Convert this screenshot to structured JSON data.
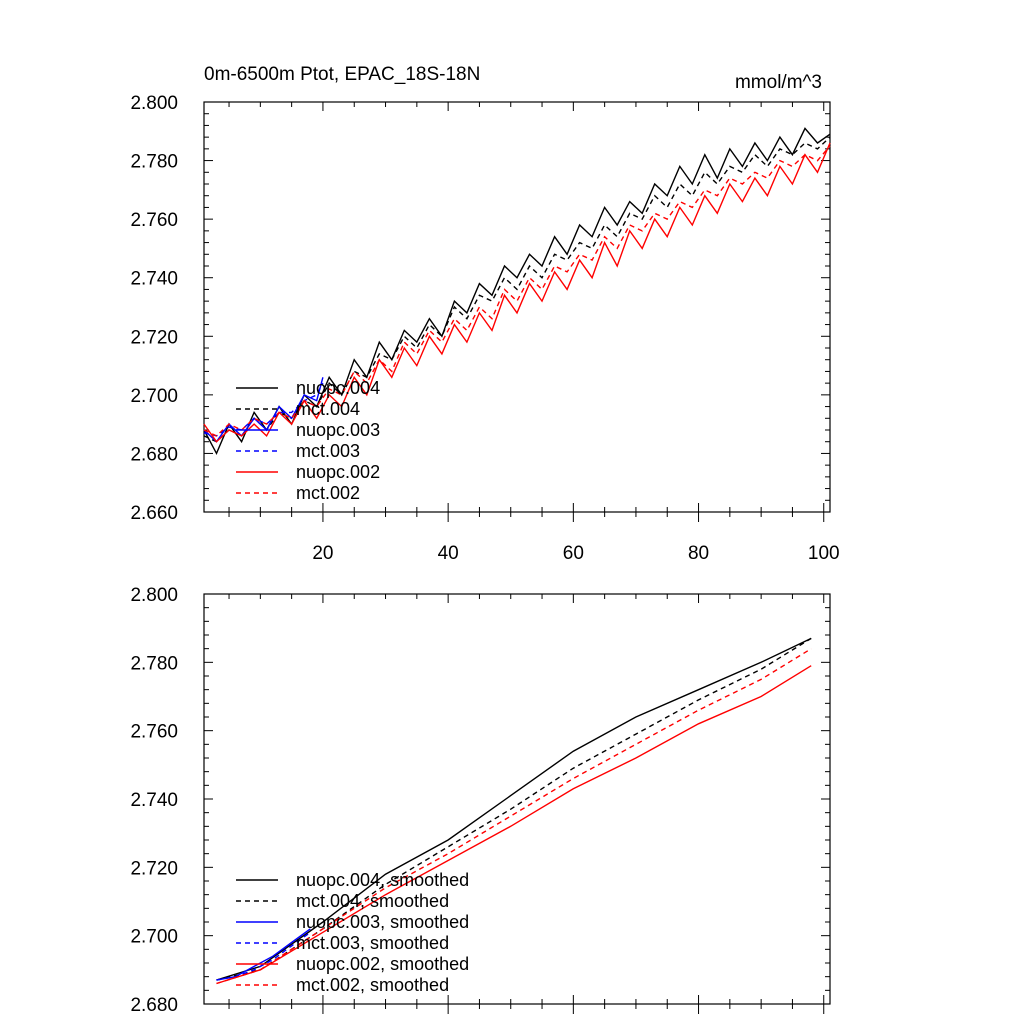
{
  "chart_data": [
    {
      "type": "line",
      "title": "0m-6500m Ptot, EPAC_18S-18N",
      "units": "mmol/m^3",
      "xlim": [
        1,
        101
      ],
      "ylim": [
        2.66,
        2.8
      ],
      "xticks": [
        20,
        40,
        60,
        80,
        100
      ],
      "yticks": [
        2.66,
        2.68,
        2.7,
        2.72,
        2.74,
        2.76,
        2.78,
        2.8
      ],
      "ytick_labels": [
        "2.660",
        "2.680",
        "2.700",
        "2.720",
        "2.740",
        "2.760",
        "2.780",
        "2.800"
      ],
      "xtick_labels": [
        "20",
        "40",
        "60",
        "80",
        "100"
      ],
      "legend_position": "lower-left",
      "series": [
        {
          "name": "nuopc.004",
          "color": "#000000",
          "dash": "solid",
          "x": [
            1,
            3,
            5,
            7,
            9,
            11,
            13,
            15,
            17,
            19,
            21,
            23,
            25,
            27,
            29,
            31,
            33,
            35,
            37,
            39,
            41,
            43,
            45,
            47,
            49,
            51,
            53,
            55,
            57,
            59,
            61,
            63,
            65,
            67,
            69,
            71,
            73,
            75,
            77,
            79,
            81,
            83,
            85,
            87,
            89,
            91,
            93,
            95,
            97,
            99,
            101
          ],
          "y": [
            2.688,
            2.68,
            2.69,
            2.684,
            2.694,
            2.688,
            2.696,
            2.69,
            2.7,
            2.696,
            2.706,
            2.7,
            2.712,
            2.706,
            2.718,
            2.712,
            2.722,
            2.718,
            2.726,
            2.72,
            2.732,
            2.728,
            2.738,
            2.734,
            2.744,
            2.74,
            2.748,
            2.744,
            2.754,
            2.748,
            2.758,
            2.754,
            2.764,
            2.758,
            2.766,
            2.762,
            2.772,
            2.768,
            2.778,
            2.772,
            2.782,
            2.774,
            2.784,
            2.778,
            2.786,
            2.78,
            2.788,
            2.782,
            2.791,
            2.786,
            2.789
          ]
        },
        {
          "name": "mct.004",
          "color": "#000000",
          "dash": "dashed",
          "x": [
            1,
            3,
            5,
            7,
            9,
            11,
            13,
            15,
            17,
            19,
            21,
            23,
            25,
            27,
            29,
            31,
            33,
            35,
            37,
            39,
            41,
            43,
            45,
            47,
            49,
            51,
            53,
            55,
            57,
            59,
            61,
            63,
            65,
            67,
            69,
            71,
            73,
            75,
            77,
            79,
            81,
            83,
            85,
            87,
            89,
            91,
            93,
            95,
            97,
            99,
            101
          ],
          "y": [
            2.686,
            2.684,
            2.688,
            2.686,
            2.692,
            2.688,
            2.694,
            2.692,
            2.698,
            2.696,
            2.704,
            2.7,
            2.708,
            2.706,
            2.714,
            2.712,
            2.72,
            2.716,
            2.724,
            2.72,
            2.73,
            2.726,
            2.734,
            2.732,
            2.74,
            2.736,
            2.744,
            2.74,
            2.748,
            2.746,
            2.752,
            2.75,
            2.758,
            2.754,
            2.762,
            2.76,
            2.768,
            2.764,
            2.772,
            2.768,
            2.776,
            2.772,
            2.778,
            2.776,
            2.782,
            2.778,
            2.784,
            2.782,
            2.786,
            2.784,
            2.788
          ]
        },
        {
          "name": "nuopc.003",
          "color": "#0000ff",
          "dash": "solid",
          "x": [
            1,
            3,
            5,
            7,
            9,
            11,
            13,
            15,
            17,
            19,
            20
          ],
          "y": [
            2.688,
            2.684,
            2.69,
            2.686,
            2.692,
            2.688,
            2.696,
            2.692,
            2.7,
            2.698,
            2.706
          ]
        },
        {
          "name": "mct.003",
          "color": "#0000ff",
          "dash": "dashed",
          "x": [
            1,
            3,
            5,
            7,
            9,
            11,
            13,
            15,
            17,
            19,
            20
          ],
          "y": [
            2.687,
            2.686,
            2.689,
            2.688,
            2.692,
            2.69,
            2.694,
            2.694,
            2.698,
            2.7,
            2.704
          ]
        },
        {
          "name": "nuopc.002",
          "color": "#ff0000",
          "dash": "solid",
          "x": [
            1,
            3,
            5,
            7,
            9,
            11,
            13,
            15,
            17,
            19,
            21,
            23,
            25,
            27,
            29,
            31,
            33,
            35,
            37,
            39,
            41,
            43,
            45,
            47,
            49,
            51,
            53,
            55,
            57,
            59,
            61,
            63,
            65,
            67,
            69,
            71,
            73,
            75,
            77,
            79,
            81,
            83,
            85,
            87,
            89,
            91,
            93,
            95,
            97,
            99,
            101
          ],
          "y": [
            2.69,
            2.684,
            2.688,
            2.686,
            2.69,
            2.686,
            2.694,
            2.69,
            2.698,
            2.692,
            2.7,
            2.696,
            2.706,
            2.7,
            2.712,
            2.706,
            2.716,
            2.71,
            2.72,
            2.714,
            2.724,
            2.718,
            2.728,
            2.722,
            2.734,
            2.728,
            2.738,
            2.732,
            2.742,
            2.736,
            2.746,
            2.74,
            2.752,
            2.744,
            2.756,
            2.75,
            2.76,
            2.754,
            2.764,
            2.758,
            2.768,
            2.762,
            2.772,
            2.766,
            2.774,
            2.768,
            2.778,
            2.772,
            2.782,
            2.776,
            2.786
          ]
        },
        {
          "name": "mct.002",
          "color": "#ff0000",
          "dash": "dashed",
          "x": [
            1,
            3,
            5,
            7,
            9,
            11,
            13,
            15,
            17,
            19,
            21,
            23,
            25,
            27,
            29,
            31,
            33,
            35,
            37,
            39,
            41,
            43,
            45,
            47,
            49,
            51,
            53,
            55,
            57,
            59,
            61,
            63,
            65,
            67,
            69,
            71,
            73,
            75,
            77,
            79,
            81,
            83,
            85,
            87,
            89,
            91,
            93,
            95,
            97,
            99,
            101
          ],
          "y": [
            2.688,
            2.686,
            2.69,
            2.688,
            2.692,
            2.69,
            2.694,
            2.692,
            2.698,
            2.696,
            2.702,
            2.7,
            2.708,
            2.704,
            2.712,
            2.708,
            2.718,
            2.714,
            2.722,
            2.718,
            2.726,
            2.722,
            2.73,
            2.726,
            2.736,
            2.732,
            2.74,
            2.736,
            2.744,
            2.742,
            2.748,
            2.746,
            2.754,
            2.75,
            2.758,
            2.756,
            2.762,
            2.76,
            2.766,
            2.764,
            2.77,
            2.768,
            2.774,
            2.772,
            2.776,
            2.774,
            2.78,
            2.778,
            2.782,
            2.78,
            2.785
          ]
        }
      ]
    },
    {
      "type": "line",
      "title": "",
      "xlim": [
        1,
        101
      ],
      "ylim": [
        2.68,
        2.8
      ],
      "xticks": [
        20,
        40,
        60,
        80,
        100
      ],
      "yticks": [
        2.68,
        2.7,
        2.72,
        2.74,
        2.76,
        2.78,
        2.8
      ],
      "ytick_labels": [
        "2.680",
        "2.700",
        "2.720",
        "2.740",
        "2.760",
        "2.780",
        "2.800"
      ],
      "legend_position": "lower-left",
      "series": [
        {
          "name": "nuopc.004, smoothed",
          "color": "#000000",
          "dash": "solid",
          "x": [
            3,
            10,
            20,
            30,
            40,
            50,
            60,
            70,
            80,
            90,
            98
          ],
          "y": [
            2.687,
            2.691,
            2.704,
            2.718,
            2.728,
            2.741,
            2.754,
            2.764,
            2.772,
            2.78,
            2.787
          ]
        },
        {
          "name": "mct.004, smoothed",
          "color": "#000000",
          "dash": "dashed",
          "x": [
            3,
            10,
            20,
            30,
            40,
            50,
            60,
            70,
            80,
            90,
            98
          ],
          "y": [
            2.687,
            2.69,
            2.702,
            2.715,
            2.726,
            2.737,
            2.749,
            2.759,
            2.769,
            2.778,
            2.787
          ]
        },
        {
          "name": "nuopc.003, smoothed",
          "color": "#0000ff",
          "dash": "solid",
          "x": [
            3,
            6,
            9,
            12,
            15,
            18
          ],
          "y": [
            2.687,
            2.688,
            2.691,
            2.694,
            2.698,
            2.702
          ]
        },
        {
          "name": "mct.003, smoothed",
          "color": "#0000ff",
          "dash": "dashed",
          "x": [
            3,
            6,
            9,
            12,
            15,
            18
          ],
          "y": [
            2.687,
            2.688,
            2.69,
            2.693,
            2.697,
            2.701
          ]
        },
        {
          "name": "nuopc.002, smoothed",
          "color": "#ff0000",
          "dash": "solid",
          "x": [
            3,
            10,
            20,
            30,
            40,
            50,
            60,
            70,
            80,
            90,
            98
          ],
          "y": [
            2.686,
            2.69,
            2.701,
            2.712,
            2.722,
            2.732,
            2.743,
            2.752,
            2.762,
            2.77,
            2.779
          ]
        },
        {
          "name": "mct.002, smoothed",
          "color": "#ff0000",
          "dash": "dashed",
          "x": [
            3,
            10,
            20,
            30,
            40,
            50,
            60,
            70,
            80,
            90,
            98
          ],
          "y": [
            2.686,
            2.69,
            2.702,
            2.714,
            2.724,
            2.735,
            2.746,
            2.756,
            2.766,
            2.775,
            2.784
          ]
        }
      ]
    }
  ]
}
